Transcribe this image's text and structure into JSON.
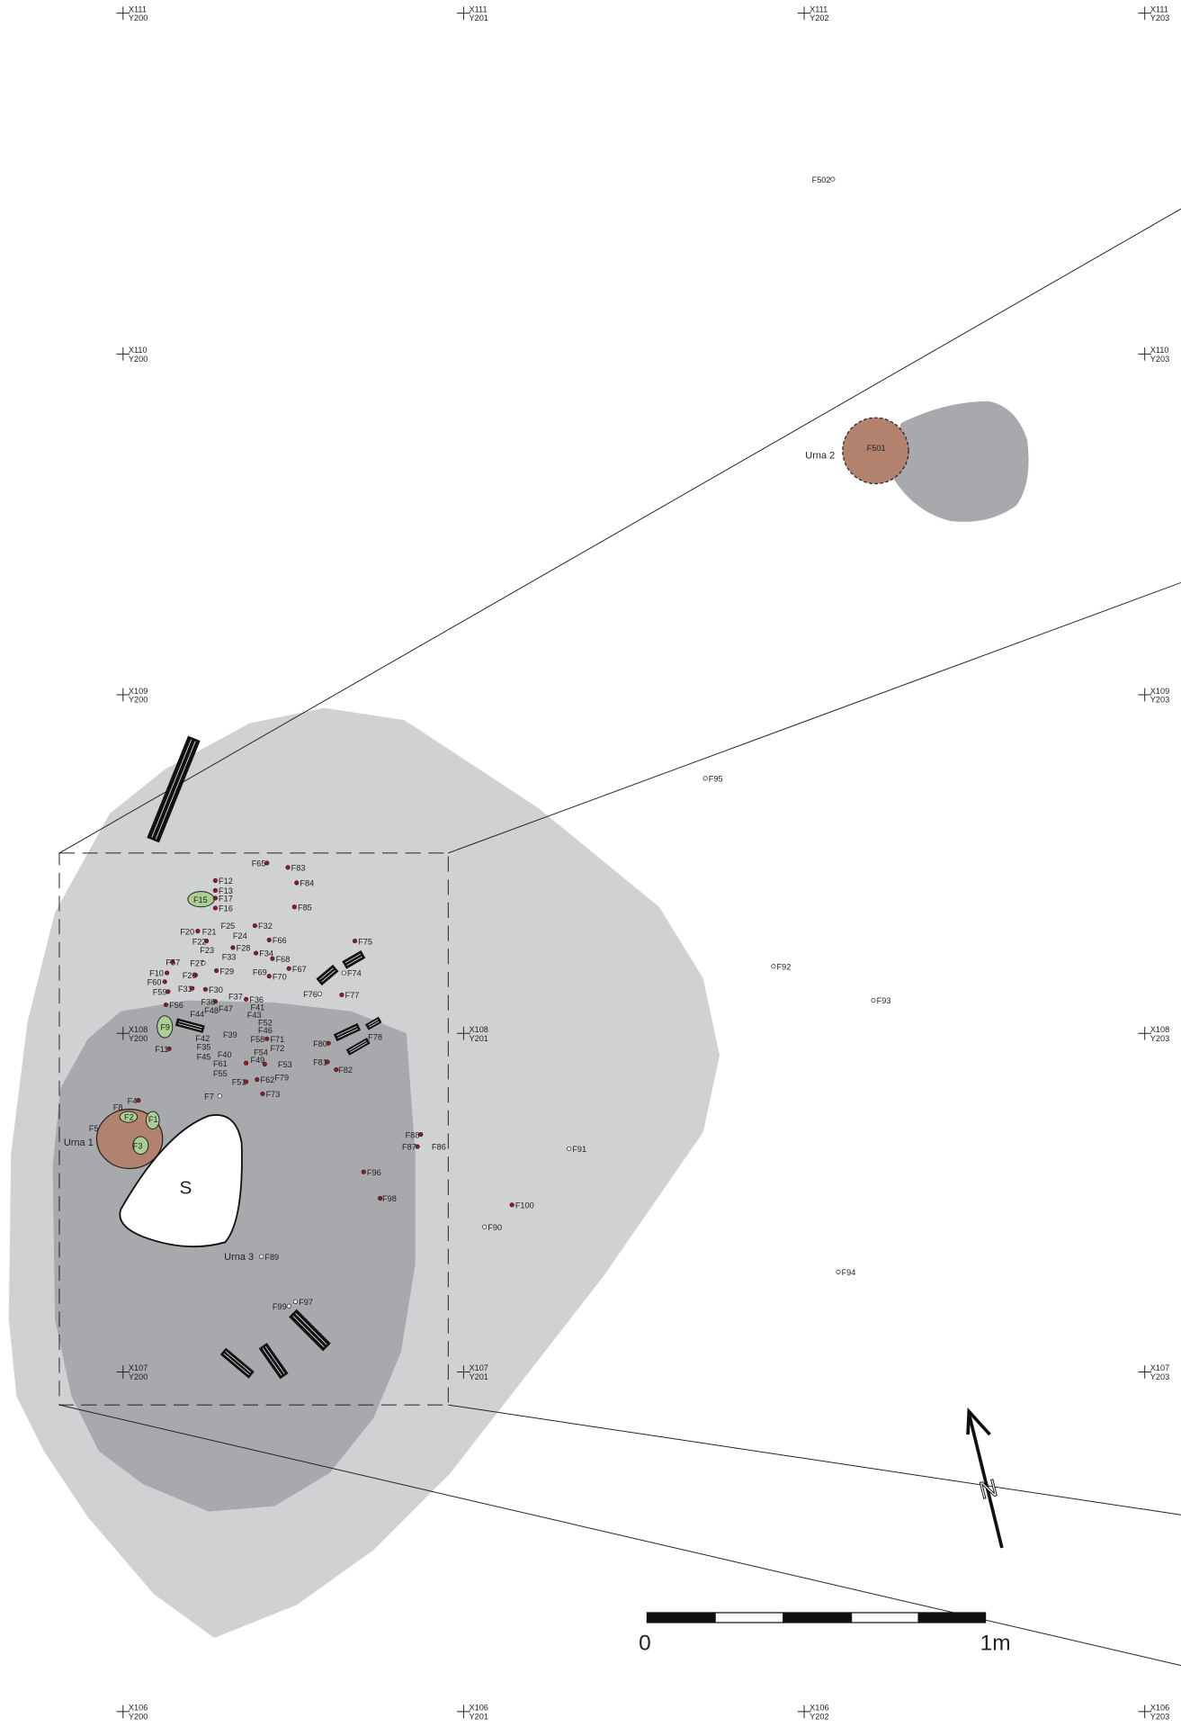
{
  "grid_markers": [
    {
      "x": "X111",
      "y": "Y200"
    },
    {
      "x": "X111",
      "y": "Y201"
    },
    {
      "x": "X111",
      "y": "Y202"
    },
    {
      "x": "X111",
      "y": "Y203"
    },
    {
      "x": "X110",
      "y": "Y200"
    },
    {
      "x": "X110",
      "y": "Y203"
    },
    {
      "x": "X109",
      "y": "Y200"
    },
    {
      "x": "X109",
      "y": "Y203"
    },
    {
      "x": "X108",
      "y": "Y200"
    },
    {
      "x": "X108",
      "y": "Y201"
    },
    {
      "x": "X108",
      "y": "Y203"
    },
    {
      "x": "X107",
      "y": "Y200"
    },
    {
      "x": "X107",
      "y": "Y201"
    },
    {
      "x": "X107",
      "y": "Y203"
    },
    {
      "x": "X106",
      "y": "Y200"
    },
    {
      "x": "X106",
      "y": "Y201"
    },
    {
      "x": "X106",
      "y": "Y202"
    },
    {
      "x": "X106",
      "y": "Y203"
    }
  ],
  "features": [
    "F502",
    "F501",
    "F95",
    "F92",
    "F93",
    "F91",
    "F100",
    "F90",
    "F94",
    "F65",
    "F83",
    "F12",
    "F84",
    "F13",
    "F15",
    "F17",
    "F16",
    "F85",
    "F25",
    "F32",
    "F20",
    "F21",
    "F24",
    "F22",
    "F66",
    "F75",
    "F23",
    "F28",
    "F33",
    "F34",
    "F68",
    "F57",
    "F27",
    "F69",
    "F70",
    "F67",
    "F74",
    "F10",
    "F26",
    "F29",
    "F60",
    "F31",
    "F30",
    "F59",
    "F76",
    "F77",
    "F56",
    "F37",
    "F36",
    "F38",
    "F41",
    "F48",
    "F47",
    "F44",
    "F43",
    "F9",
    "F52",
    "F46",
    "F39",
    "F42",
    "F58",
    "F71",
    "F78",
    "F80",
    "F35",
    "F72",
    "F11",
    "F45",
    "F40",
    "F54",
    "F49",
    "F53",
    "F61",
    "F81",
    "F82",
    "F55",
    "F79",
    "F62",
    "F51",
    "F73",
    "F7",
    "F4",
    "F8",
    "F2",
    "F1",
    "F5",
    "F3",
    "F88",
    "F87",
    "F86",
    "F96",
    "F98",
    "F89",
    "F99",
    "F97"
  ],
  "labels": {
    "urna_1": "Urna 1",
    "urna_2": "Urna 2",
    "urna_3": "Urna 3",
    "stone": "S",
    "north": "N"
  },
  "scale_bar": {
    "start": "0",
    "end": "1m"
  }
}
